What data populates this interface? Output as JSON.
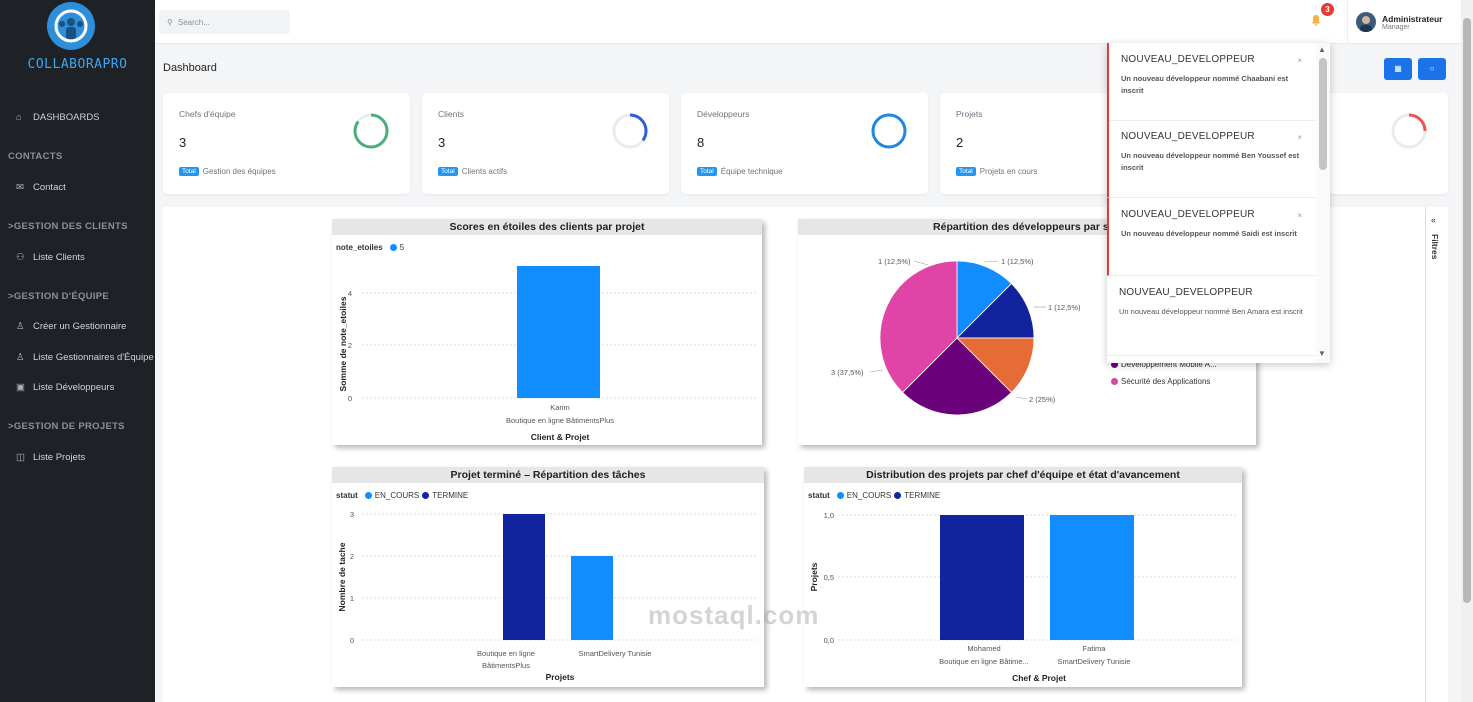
{
  "brand": {
    "name": "COLLABORAPRO"
  },
  "sidebar": {
    "dashboards": "DASHBOARDS",
    "contacts_section": "CONTACTS",
    "contact": "Contact",
    "clients_section": ">GESTION DES CLIENTS",
    "clients_list": "Liste Clients",
    "team_section": ">GESTION D'ÉQUIPE",
    "create_manager": "Créer un Gestionnaire",
    "managers_list": "Liste Gestionnaires d'Équipe",
    "devs_list": "Liste Développeurs",
    "projects_section": ">GESTION DE PROJETS",
    "projects_list": "Liste Projets"
  },
  "topbar": {
    "search_placeholder": "Search...",
    "notif_count": "3",
    "user_name": "Administrateur",
    "user_role": "Manager"
  },
  "page": {
    "title": "Dashboard"
  },
  "cards": [
    {
      "label": "Chefs d'équipe",
      "value": "3",
      "tag": "Total",
      "foot": "Gestion des équipes",
      "ring_color": "#4caf7a",
      "ring_pct": 0.85
    },
    {
      "label": "Clients",
      "value": "3",
      "tag": "Total",
      "foot": "Clients actifs",
      "ring_color": "#2f5fd0",
      "ring_pct": 0.35
    },
    {
      "label": "Développeurs",
      "value": "8",
      "tag": "Total",
      "foot": "Équipe technique",
      "ring_color": "#1e88e5",
      "ring_pct": 1.0
    },
    {
      "label": "Projets",
      "value": "2",
      "tag": "Total",
      "foot": "Projets en cours",
      "ring_color": "#1e88e5",
      "ring_pct": 0.0
    },
    {
      "label": "",
      "value": "",
      "tag": "",
      "foot": "",
      "ring_color": "#ef5350",
      "ring_pct": 0.25
    }
  ],
  "filters_label": "Filtres",
  "charts": {
    "stars": {
      "title": "Scores en étoiles des clients par projet",
      "legend_title": "note_etoiles",
      "legend_item": "5",
      "ylabel": "Somme de note_etoiles",
      "xlabel": "Client & Projet",
      "cat1": "Karim",
      "cat2": "Boutique en ligne BâtimentsPlus",
      "ticks": [
        "0",
        "2",
        "4"
      ]
    },
    "pie": {
      "title": "Répartition des développeurs par spé",
      "labels": [
        "1 (12,5%)",
        "1 (12,5%)",
        "1 (12,5%)",
        "2 (25%)",
        "3 (37,5%)"
      ],
      "legend": [
        "Développement Mobile A...",
        "Sécurité des Applications"
      ]
    },
    "tasks": {
      "title": "Projet terminé – Répartition des tâches",
      "legend_title": "statut",
      "legend": [
        "EN_COURS",
        "TERMINE"
      ],
      "ylabel": "Nombre de tache",
      "xlabel": "Projets",
      "ticks": [
        "0",
        "1",
        "2",
        "3"
      ],
      "cat1a": "Boutique en ligne",
      "cat1b": "BâtimentsPlus",
      "cat2": "SmartDelivery Tunisie"
    },
    "dist": {
      "title": "Distribution des projets par chef d'équipe et état d'avancement",
      "legend_title": "statut",
      "legend": [
        "EN_COURS",
        "TERMINE"
      ],
      "ylabel": "Projets",
      "xlabel": "Chef & Projet",
      "ticks": [
        "0,0",
        "0,5",
        "1,0"
      ],
      "cat1a": "Mohamed",
      "cat1b": "Boutique en ligne Bâtime...",
      "cat2a": "Fatima",
      "cat2b": "SmartDelivery Tunisie"
    }
  },
  "chart_data": [
    {
      "type": "bar",
      "title": "Scores en étoiles des clients par projet",
      "categories": [
        "Karim | Boutique en ligne BâtimentsPlus"
      ],
      "series": [
        {
          "name": "5",
          "values": [
            5
          ]
        }
      ],
      "xlabel": "Client & Projet",
      "ylabel": "Somme de note_etoiles",
      "ylim": [
        0,
        5
      ]
    },
    {
      "type": "pie",
      "title": "Répartition des développeurs par spé",
      "values": [
        1,
        1,
        1,
        2,
        3
      ],
      "colors": [
        "#118dff",
        "#12239e",
        "#e66c37",
        "#6b007b",
        "#e044a7"
      ]
    },
    {
      "type": "bar",
      "title": "Projet terminé – Répartition des tâches",
      "categories": [
        "Boutique en ligne BâtimentsPlus",
        "SmartDelivery Tunisie"
      ],
      "series": [
        {
          "name": "TERMINE",
          "values": [
            3,
            0
          ]
        },
        {
          "name": "EN_COURS",
          "values": [
            0,
            2
          ]
        }
      ],
      "xlabel": "Projets",
      "ylabel": "Nombre de tache",
      "ylim": [
        0,
        3
      ]
    },
    {
      "type": "bar",
      "title": "Distribution des projets par chef d'équipe et état d'avancement",
      "categories": [
        "Mohamed | Boutique en ligne Bâtime...",
        "Fatima | SmartDelivery Tunisie"
      ],
      "series": [
        {
          "name": "TERMINE",
          "values": [
            1,
            0
          ]
        },
        {
          "name": "EN_COURS",
          "values": [
            0,
            1
          ]
        }
      ],
      "xlabel": "Chef & Projet",
      "ylabel": "Projets",
      "ylim": [
        0,
        1
      ]
    }
  ],
  "notifications": [
    {
      "title": "NOUVEAU_DEVELOPPEUR",
      "body": "Un nouveau développeur nommé Chaabani est inscrit",
      "close": "×"
    },
    {
      "title": "NOUVEAU_DEVELOPPEUR",
      "body": "Un nouveau développeur nommé Ben Youssef est inscrit",
      "close": "×"
    },
    {
      "title": "NOUVEAU_DEVELOPPEUR",
      "body": "Un nouveau développeur nommé Saidi est inscrit",
      "close": "×"
    },
    {
      "title": "NOUVEAU_DEVELOPPEUR",
      "body": "Un nouveau développeur nommé Ben Amara est inscrit",
      "close": ""
    }
  ],
  "watermark": "mostaql.com"
}
